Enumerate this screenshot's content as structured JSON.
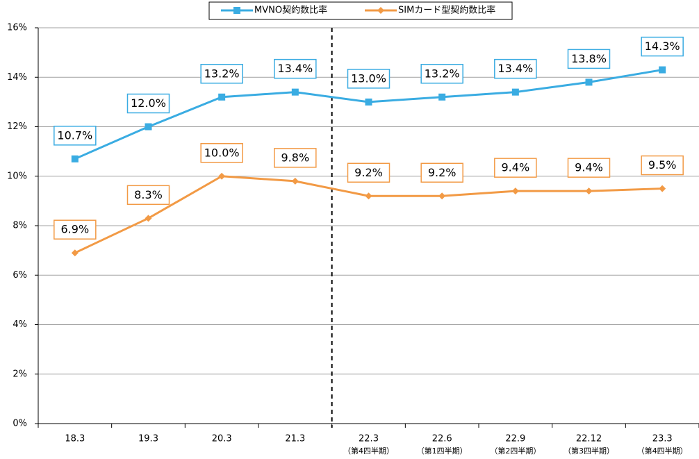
{
  "chart_data": {
    "type": "line",
    "categories": [
      "18.3",
      "19.3",
      "20.3",
      "21.3",
      "22.3",
      "22.6",
      "22.9",
      "22.12",
      "23.3"
    ],
    "category_sublabels": [
      null,
      null,
      null,
      null,
      "（第4四半期）",
      "（第1四半期）",
      "（第2四半期）",
      "（第3四半期）",
      "（第4四半期）"
    ],
    "series": [
      {
        "name": "MVNO契約数比率",
        "color": "#3aace2",
        "marker": "square",
        "values": [
          10.7,
          12.0,
          13.2,
          13.4,
          13.0,
          13.2,
          13.4,
          13.8,
          14.3
        ],
        "value_labels": [
          "10.7%",
          "12.0%",
          "13.2%",
          "13.4%",
          "13.0%",
          "13.2%",
          "13.4%",
          "13.8%",
          "14.3%"
        ]
      },
      {
        "name": "SIMカード型契約数比率",
        "color": "#f29a45",
        "marker": "diamond",
        "values": [
          6.9,
          8.3,
          10.0,
          9.8,
          9.2,
          9.2,
          9.4,
          9.4,
          9.5
        ],
        "value_labels": [
          "6.9%",
          "8.3%",
          "10.0%",
          "9.8%",
          "9.2%",
          "9.2%",
          "9.4%",
          "9.4%",
          "9.5%"
        ]
      }
    ],
    "ylim": [
      0,
      16
    ],
    "yticks": [
      {
        "value": 0,
        "label": "0%"
      },
      {
        "value": 2,
        "label": "2%"
      },
      {
        "value": 4,
        "label": "4%"
      },
      {
        "value": 6,
        "label": "6%"
      },
      {
        "value": 8,
        "label": "8%"
      },
      {
        "value": 10,
        "label": "10%"
      },
      {
        "value": 12,
        "label": "12%"
      },
      {
        "value": 14,
        "label": "14%"
      },
      {
        "value": 16,
        "label": "16%"
      }
    ],
    "grid": true,
    "legend": "top"
  }
}
